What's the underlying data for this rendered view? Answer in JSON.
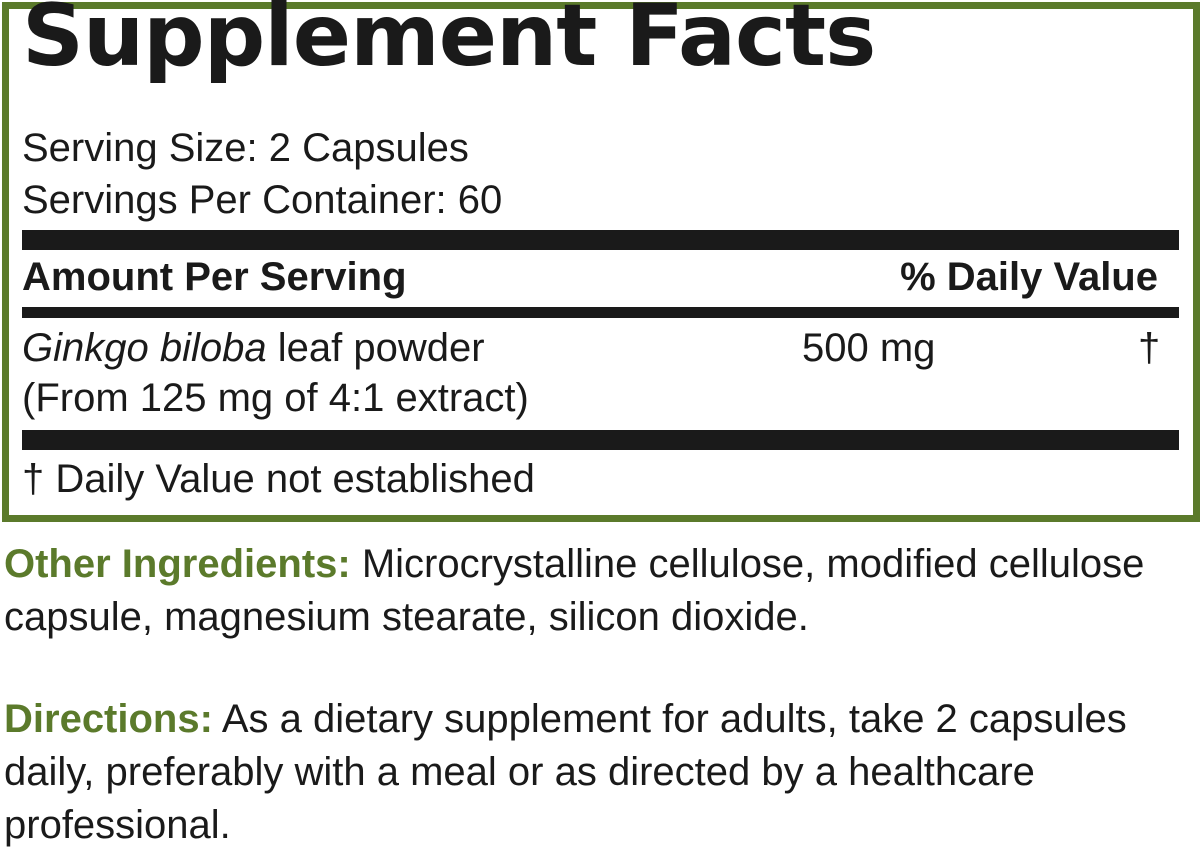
{
  "facts": {
    "title": "Supplement Facts",
    "serving_size": "Serving Size: 2 Capsules",
    "servings_per_container": "Servings Per Container: 60",
    "header_amount": "Amount Per Serving",
    "header_dv": "% Daily Value",
    "ingredient": {
      "name_italic": "Ginkgo biloba",
      "name_rest": " leaf powder",
      "detail": "(From 125 mg of 4:1 extract)",
      "amount": "500 mg",
      "dv": "†"
    },
    "footnote": "† Daily Value not established"
  },
  "other_ingredients": {
    "label": "Other Ingredients:",
    "text": " Microcrystalline cellulose, modified cellulose capsule, magnesium stearate, silicon dioxide."
  },
  "directions": {
    "label": "Directions:",
    "text": " As a dietary supplement for adults, take 2 capsules daily, preferably with a meal or as directed by a healthcare professional."
  },
  "colors": {
    "border": "#5b7a2b",
    "accent_text": "#5b7a2b",
    "text": "#1a1a1a"
  }
}
